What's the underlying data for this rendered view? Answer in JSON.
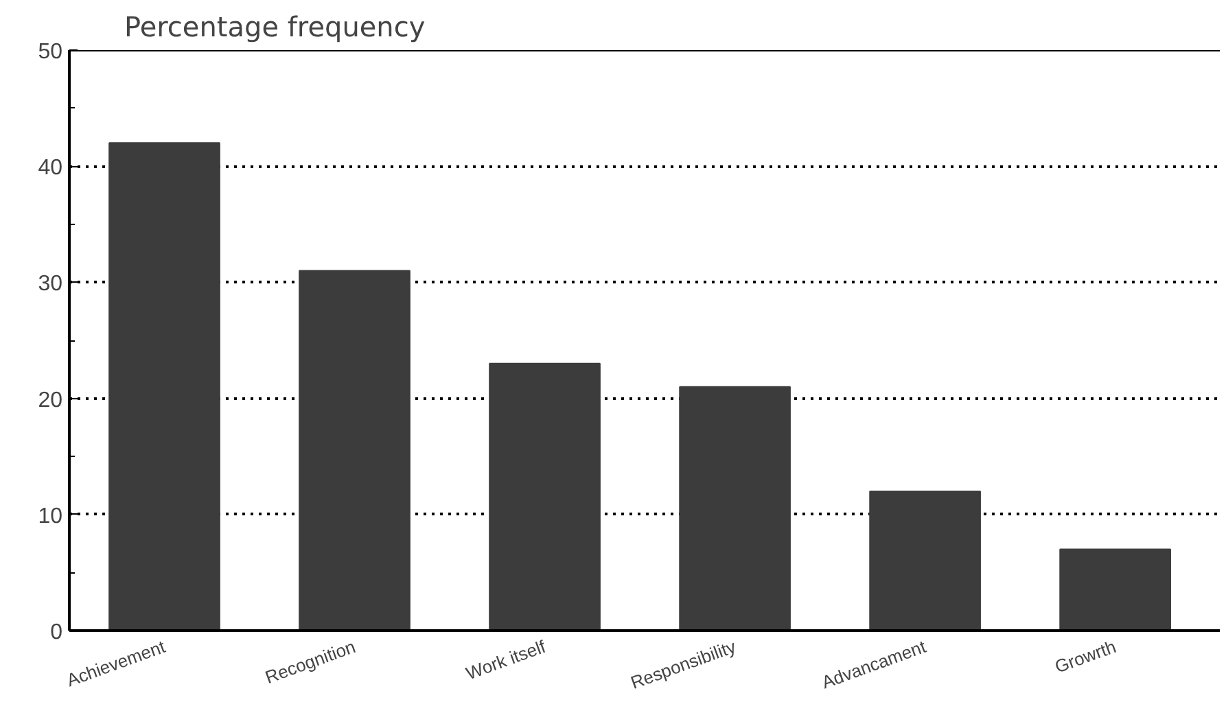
{
  "chart_data": {
    "type": "bar",
    "title": "Percentage frequency",
    "categories": [
      "Achievement",
      "Recognition",
      "Work itself",
      "Responsibility",
      "Advancament",
      "Growrth"
    ],
    "values": [
      42,
      31,
      23,
      21,
      12,
      7
    ],
    "color": "#3c3c3c",
    "ylim": [
      0,
      50
    ],
    "yticks": [
      0,
      10,
      20,
      30,
      40,
      50
    ],
    "grid": "y"
  }
}
